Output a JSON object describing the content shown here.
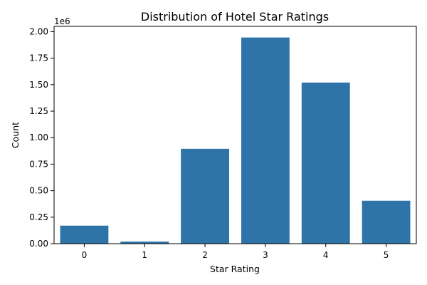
{
  "chart_data": {
    "type": "bar",
    "title": "Distribution of Hotel Star Ratings",
    "xlabel": "Star Rating",
    "ylabel": "Count",
    "categories": [
      "0",
      "1",
      "2",
      "3",
      "4",
      "5"
    ],
    "values": [
      170000,
      20000,
      895000,
      1945000,
      1520000,
      405000
    ],
    "ylim": [
      0,
      2050000
    ],
    "y_ticks": [
      0,
      250000,
      500000,
      750000,
      1000000,
      1250000,
      1500000,
      1750000,
      2000000
    ],
    "y_tick_labels": [
      "0.00",
      "0.25",
      "0.50",
      "0.75",
      "1.00",
      "1.25",
      "1.50",
      "1.75",
      "2.00"
    ],
    "y_offset_label": "1e6",
    "bar_color": "#2f74a8",
    "grid": false,
    "legend": "none"
  }
}
